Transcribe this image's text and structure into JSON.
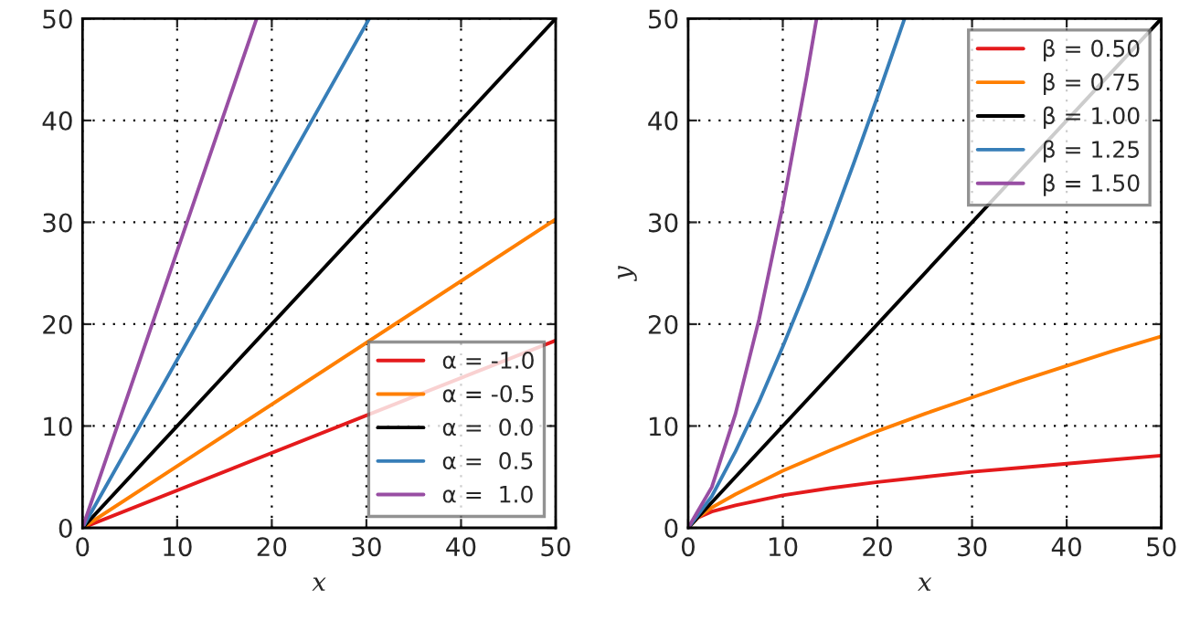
{
  "chart_data": [
    {
      "type": "line",
      "xlabel": "x",
      "xlim": [
        0,
        50
      ],
      "ylim": [
        0,
        50
      ],
      "xticks": [
        0,
        10,
        20,
        30,
        40,
        50
      ],
      "yticks": [
        0,
        10,
        20,
        30,
        40,
        50
      ],
      "grid": true,
      "legend": "bottom right",
      "series": [
        {
          "name": "α = -1.0",
          "color": "#e41a1c",
          "x": [
            0,
            50
          ],
          "values": [
            0,
            18.4
          ]
        },
        {
          "name": "α = -0.5",
          "color": "#ff7f00",
          "x": [
            0,
            50
          ],
          "values": [
            0,
            30.3
          ]
        },
        {
          "name": "α =  0.0",
          "color": "#000000",
          "x": [
            0,
            50
          ],
          "values": [
            0,
            50
          ]
        },
        {
          "name": "α =  0.5",
          "color": "#377eb8",
          "x": [
            0,
            30.3
          ],
          "values": [
            0,
            50
          ]
        },
        {
          "name": "α =  1.0",
          "color": "#984ea3",
          "x": [
            0,
            18.4
          ],
          "values": [
            0,
            50
          ]
        }
      ]
    },
    {
      "type": "line",
      "xlabel": "x",
      "ylabel": "y",
      "xlim": [
        0,
        50
      ],
      "ylim": [
        0,
        50
      ],
      "xticks": [
        0,
        10,
        20,
        30,
        40,
        50
      ],
      "yticks": [
        0,
        10,
        20,
        30,
        40,
        50
      ],
      "grid": true,
      "legend": "top right",
      "series": [
        {
          "name": "β = 0.50",
          "color": "#e41a1c",
          "x": [
            0,
            1,
            2.5,
            5,
            10,
            15,
            20,
            25,
            30,
            35,
            40,
            45,
            50
          ],
          "values": [
            0,
            1,
            1.6,
            2.2,
            3.2,
            3.9,
            4.5,
            5,
            5.5,
            5.9,
            6.3,
            6.7,
            7.1
          ]
        },
        {
          "name": "β = 0.75",
          "color": "#ff7f00",
          "x": [
            0,
            1,
            2.5,
            5,
            10,
            15,
            20,
            25,
            30,
            35,
            40,
            45,
            50
          ],
          "values": [
            0,
            1,
            2,
            3.3,
            5.6,
            7.6,
            9.5,
            11.2,
            12.8,
            14.4,
            15.9,
            17.4,
            18.8
          ]
        },
        {
          "name": "β = 1.00",
          "color": "#000000",
          "x": [
            0,
            50
          ],
          "values": [
            0,
            50
          ]
        },
        {
          "name": "β = 1.25",
          "color": "#377eb8",
          "x": [
            0,
            2.5,
            5,
            7.5,
            10,
            12.5,
            15,
            17.5,
            20,
            22.87
          ],
          "values": [
            0,
            3.1,
            7.5,
            12.4,
            17.8,
            23.5,
            29.5,
            35.8,
            42.3,
            50
          ]
        },
        {
          "name": "β = 1.50",
          "color": "#984ea3",
          "x": [
            0,
            2.5,
            5,
            7.5,
            10,
            12.5,
            13.57
          ],
          "values": [
            0,
            4,
            11.2,
            20.5,
            31.6,
            44.2,
            50
          ]
        }
      ]
    }
  ]
}
